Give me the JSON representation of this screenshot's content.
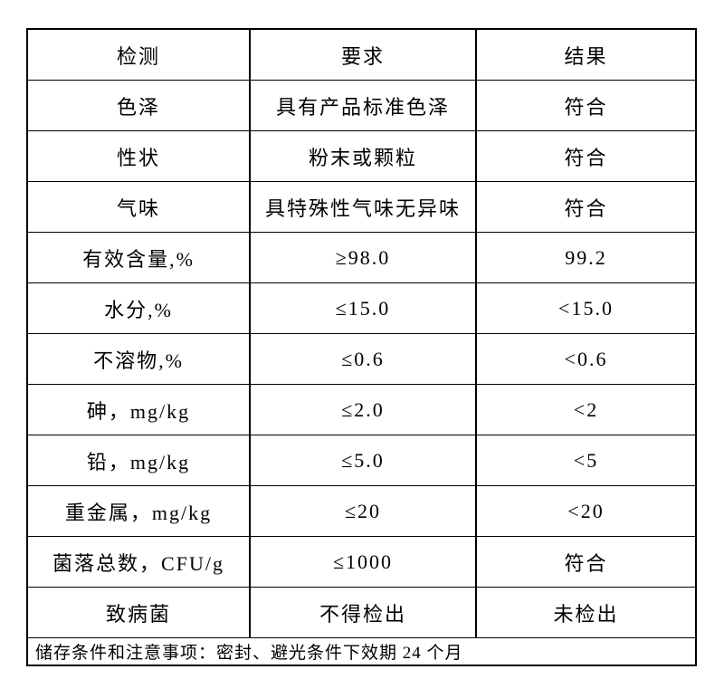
{
  "table": {
    "columns": [
      {
        "label": "检测"
      },
      {
        "label": "要求"
      },
      {
        "label": "结果"
      }
    ],
    "rows": [
      {
        "item": "色泽",
        "requirement": "具有产品标准色泽",
        "result": "符合"
      },
      {
        "item": "性状",
        "requirement": "粉末或颗粒",
        "result": "符合"
      },
      {
        "item": "气味",
        "requirement": "具特殊性气味无异味",
        "result": "符合"
      },
      {
        "item": "有效含量,%",
        "requirement": "≥98.0",
        "result": "99.2"
      },
      {
        "item": "水分,%",
        "requirement": "≤15.0",
        "result": "<15.0"
      },
      {
        "item": "不溶物,%",
        "requirement": "≤0.6",
        "result": "<0.6"
      },
      {
        "item": "砷，mg/kg",
        "requirement": "≤2.0",
        "result": "<2"
      },
      {
        "item": "铅，mg/kg",
        "requirement": "≤5.0",
        "result": "<5"
      },
      {
        "item": "重金属，mg/kg",
        "requirement": "≤20",
        "result": "<20"
      },
      {
        "item": "菌落总数，CFU/g",
        "requirement": "≤1000",
        "result": "符合"
      },
      {
        "item": "致病菌",
        "requirement": "不得检出",
        "result": "未检出"
      }
    ],
    "footer_note": "储存条件和注意事项：密封、避光条件下效期 24 个月"
  },
  "colors": {
    "border": "#000000",
    "text": "#000000",
    "background": "#ffffff"
  }
}
